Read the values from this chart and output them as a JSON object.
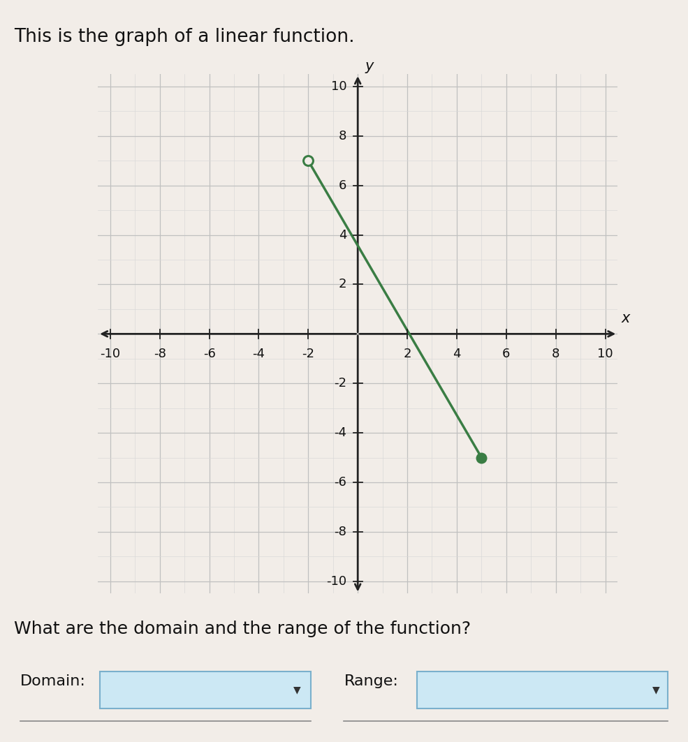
{
  "title": "This is the graph of a linear function.",
  "question": "What are the domain and the range of the function?",
  "domain_label": "Domain:",
  "range_label": "Range:",
  "open_point": [
    -2,
    7
  ],
  "closed_point": [
    5,
    -5
  ],
  "line_color": "#3a7d44",
  "line_width": 2.5,
  "open_circle_color": "#3a7d44",
  "closed_circle_color": "#3a7d44",
  "marker_size": 10,
  "xlim": [
    -10.5,
    10.5
  ],
  "ylim": [
    -10.5,
    10.5
  ],
  "axis_color": "#222222",
  "grid_minor_color": "#d8d8d8",
  "grid_major_color": "#c0c0c0",
  "background_color": "#f2ede8",
  "font_size_title": 19,
  "font_size_question": 18,
  "font_size_axis_labels": 13,
  "font_size_tick": 13,
  "dropdown_color": "#cce8f4",
  "dropdown_border_color": "#7ab0cc"
}
